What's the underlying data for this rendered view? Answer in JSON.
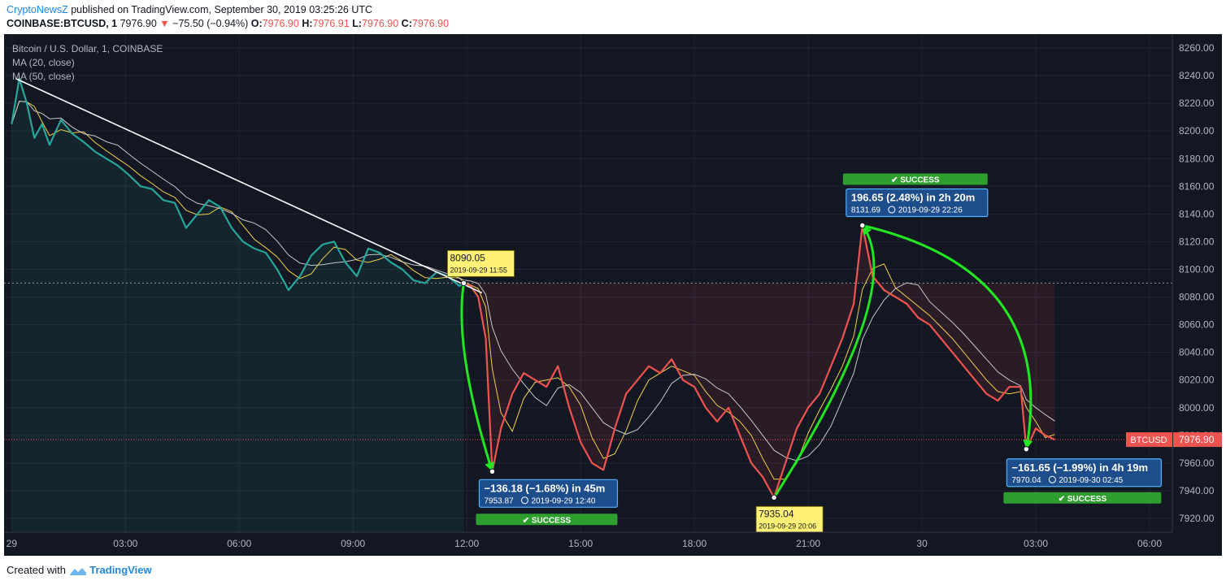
{
  "header": {
    "author": "CryptoNewsZ",
    "published_text": "published on TradingView.com, September 30, 2019 03:25:26 UTC",
    "symbol_label": "COINBASE:BTCUSD, 1",
    "last_price": "7976.90",
    "change": "−75.50 (−0.94%)",
    "o_label": "O:",
    "o_value": "7976.90",
    "h_label": "H:",
    "h_value": "7976.91",
    "l_label": "L:",
    "l_value": "7976.90",
    "c_label": "C:",
    "c_value": "7976.90"
  },
  "legend": {
    "title": "Bitcoin / U.S. Dollar, 1, COINBASE",
    "ma20": "MA (20, close)",
    "ma50": "MA (50, close)"
  },
  "footer": {
    "created_with": "Created with",
    "brand": "TradingView"
  },
  "colors": {
    "up": "#26a69a",
    "down": "#ef5350",
    "arrow": "#22e622",
    "badge_yellow": "#fff176",
    "badge_blue": "#1e4d8c",
    "success": "#2e9e2e",
    "price_tag": "#ef5350"
  },
  "chart_data": {
    "type": "line",
    "ylim": [
      7910,
      8270
    ],
    "y_ticks": [
      7920,
      7940,
      7960,
      7980,
      8000,
      8020,
      8040,
      8060,
      8080,
      8100,
      8120,
      8140,
      8160,
      8180,
      8200,
      8220,
      8240,
      8260
    ],
    "x_ticks": [
      "29",
      "03:00",
      "06:00",
      "09:00",
      "12:00",
      "15:00",
      "18:00",
      "21:00",
      "30",
      "03:00",
      "06:00"
    ],
    "x_tick_hours": [
      0,
      3,
      6,
      9,
      12,
      15,
      18,
      21,
      24,
      27,
      30
    ],
    "xlim_hours": [
      -0.2,
      30.6
    ],
    "price_series": {
      "x_hours": [
        0,
        0.2,
        0.4,
        0.6,
        0.8,
        1.0,
        1.3,
        1.6,
        1.9,
        2.2,
        2.5,
        2.8,
        3.1,
        3.4,
        3.7,
        4.0,
        4.3,
        4.6,
        4.9,
        5.2,
        5.5,
        5.8,
        6.1,
        6.4,
        6.7,
        7.0,
        7.3,
        7.6,
        7.9,
        8.2,
        8.5,
        8.8,
        9.1,
        9.4,
        9.7,
        10.0,
        10.3,
        10.6,
        10.9,
        11.2,
        11.5,
        11.8,
        11.92,
        12.1,
        12.3,
        12.5,
        12.67,
        12.9,
        13.2,
        13.5,
        13.8,
        14.1,
        14.4,
        14.7,
        15.0,
        15.3,
        15.6,
        15.9,
        16.2,
        16.5,
        16.8,
        17.1,
        17.4,
        17.7,
        18.0,
        18.3,
        18.6,
        18.9,
        19.2,
        19.5,
        19.8,
        20.1,
        20.4,
        20.7,
        21.0,
        21.3,
        21.6,
        21.9,
        22.2,
        22.43,
        22.7,
        23.0,
        23.3,
        23.6,
        23.9,
        24.2,
        24.5,
        24.8,
        25.1,
        25.4,
        25.7,
        26.0,
        26.3,
        26.6,
        26.75,
        27.0,
        27.25,
        27.5
      ],
      "y": [
        8205,
        8238,
        8220,
        8195,
        8205,
        8190,
        8208,
        8198,
        8192,
        8185,
        8180,
        8175,
        8168,
        8160,
        8158,
        8150,
        8148,
        8130,
        8140,
        8150,
        8145,
        8130,
        8120,
        8115,
        8112,
        8100,
        8085,
        8095,
        8110,
        8118,
        8120,
        8105,
        8095,
        8115,
        8112,
        8105,
        8100,
        8092,
        8090,
        8098,
        8095,
        8088,
        8090,
        8088,
        8080,
        8050,
        7953.87,
        7985,
        8010,
        8025,
        8020,
        8015,
        8030,
        8000,
        7975,
        7960,
        7955,
        7985,
        8010,
        8020,
        8030,
        8025,
        8035,
        8020,
        8015,
        8000,
        7990,
        8000,
        7980,
        7960,
        7950,
        7935.04,
        7960,
        7985,
        8000,
        8010,
        8030,
        8050,
        8075,
        8131.69,
        8095,
        8085,
        8080,
        8075,
        8065,
        8060,
        8050,
        8040,
        8030,
        8020,
        8010,
        8005,
        8015,
        8015,
        7970.04,
        7985,
        7980,
        7976.9
      ],
      "split_hour": 11.92
    },
    "trendline": {
      "from": [
        0.1,
        8238
      ],
      "to": [
        12.4,
        8083
      ]
    },
    "reference_lines": [
      8090.05,
      7976.9
    ],
    "last_price_label": "BTCUSD",
    "last_price": "7976.90",
    "annotations": [
      {
        "type": "price_label",
        "value": "8090.05",
        "time": "2019-09-29 11:55",
        "x_hour": 11.92,
        "y": 8090.05
      },
      {
        "type": "move",
        "text": "−136.18 (−1.68%) in 45m",
        "value": "7953.87",
        "time": "2019-09-29  12:40",
        "x_hour": 12.67,
        "y": 7953.87,
        "status": "SUCCESS"
      },
      {
        "type": "price_label",
        "value": "7935.04",
        "time": "2019-09-29 20:06",
        "x_hour": 20.1,
        "y": 7935.04
      },
      {
        "type": "move",
        "text": "196.65 (2.48%) in 2h 20m",
        "value": "8131.69",
        "time": "2019-09-29  22:26",
        "x_hour": 22.43,
        "y": 8131.69,
        "status": "SUCCESS"
      },
      {
        "type": "move",
        "text": "−161.65 (−1.99%) in 4h 19m",
        "value": "7970.04",
        "time": "2019-09-30  02:45",
        "x_hour": 26.75,
        "y": 7970.04,
        "status": "SUCCESS"
      }
    ]
  }
}
